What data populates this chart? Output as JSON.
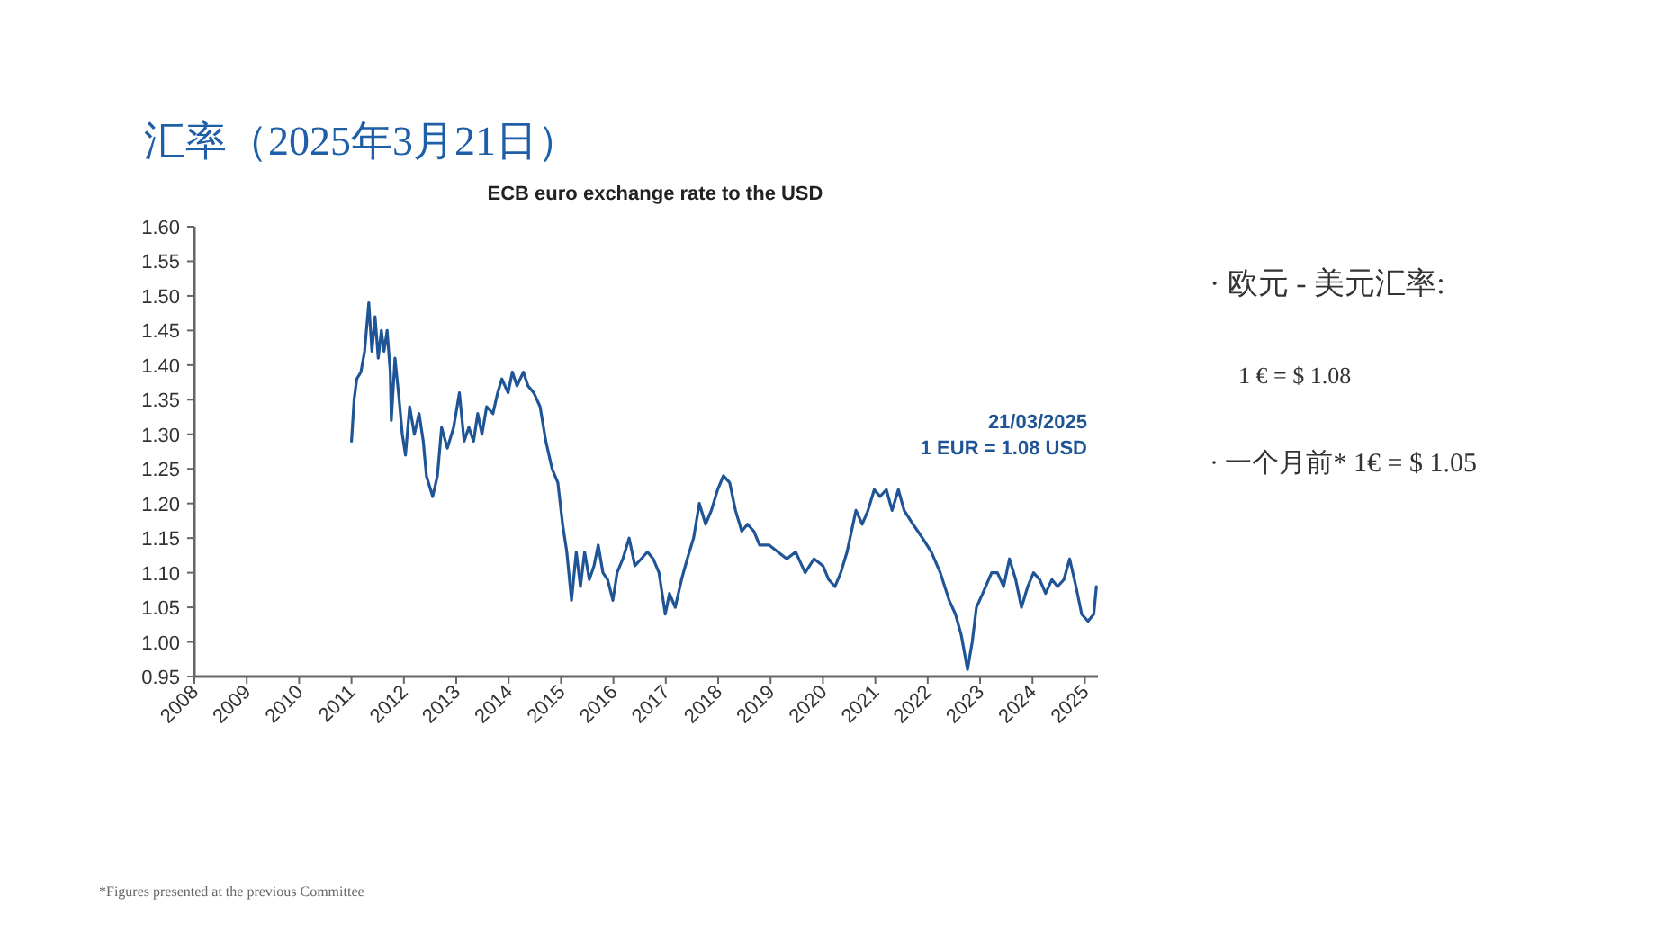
{
  "chart_data": {
    "type": "line",
    "title": "ECB euro exchange rate to the USD",
    "subtitle": "汇率（2025年3月21日）",
    "xlim": [
      2008,
      2025.25
    ],
    "xticks": [
      2008,
      2009,
      2010,
      2011,
      2012,
      2013,
      2014,
      2015,
      2016,
      2017,
      2018,
      2019,
      2020,
      2021,
      2022,
      2023,
      2024,
      2025
    ],
    "ylim": [
      0.95,
      1.6
    ],
    "yticks": [
      {
        "value": 0.95,
        "label": "0.95"
      },
      {
        "value": 1.0,
        "label": "1.00"
      },
      {
        "value": 1.05,
        "label": "1.05"
      },
      {
        "value": 1.1,
        "label": "1.10"
      },
      {
        "value": 1.15,
        "label": "1.15"
      },
      {
        "value": 1.2,
        "label": "1.20"
      },
      {
        "value": 1.25,
        "label": "1.25"
      },
      {
        "value": 1.3,
        "label": "1.30"
      },
      {
        "value": 1.35,
        "label": "1.35"
      },
      {
        "value": 1.4,
        "label": "1.40"
      },
      {
        "value": 1.45,
        "label": "1.45"
      },
      {
        "value": 1.5,
        "label": "1.50"
      },
      {
        "value": 1.55,
        "label": "1.55"
      },
      {
        "value": 1.6,
        "label": "1.60"
      }
    ],
    "grid": false,
    "marker": "none",
    "line_style": "solid",
    "series": [
      {
        "color": "#1f5596",
        "x": [
          2011.0,
          2011.05,
          2011.1,
          2011.18,
          2011.25,
          2011.33,
          2011.39,
          2011.45,
          2011.51,
          2011.57,
          2011.62,
          2011.68,
          2011.74,
          2011.76,
          2011.83,
          2011.91,
          2011.97,
          2012.03,
          2012.11,
          2012.2,
          2012.29,
          2012.37,
          2012.43,
          2012.55,
          2012.64,
          2012.72,
          2012.83,
          2012.95,
          2013.06,
          2013.15,
          2013.24,
          2013.33,
          2013.41,
          2013.49,
          2013.58,
          2013.7,
          2013.79,
          2013.87,
          2013.99,
          2014.07,
          2014.16,
          2014.28,
          2014.37,
          2014.48,
          2014.6,
          2014.71,
          2014.83,
          2014.94,
          2015.03,
          2015.11,
          2015.2,
          2015.29,
          2015.37,
          2015.45,
          2015.54,
          2015.63,
          2015.71,
          2015.8,
          2015.89,
          2015.99,
          2016.07,
          2016.18,
          2016.3,
          2016.41,
          2016.53,
          2016.65,
          2016.76,
          2016.87,
          2016.99,
          2017.07,
          2017.18,
          2017.3,
          2017.41,
          2017.53,
          2017.64,
          2017.76,
          2017.87,
          2017.99,
          2018.1,
          2018.22,
          2018.33,
          2018.45,
          2018.56,
          2018.68,
          2018.79,
          2018.97,
          2019.14,
          2019.31,
          2019.48,
          2019.66,
          2019.83,
          2020.0,
          2020.11,
          2020.23,
          2020.34,
          2020.46,
          2020.63,
          2020.75,
          2020.86,
          2020.98,
          2021.09,
          2021.21,
          2021.32,
          2021.44,
          2021.55,
          2021.72,
          2021.9,
          2022.07,
          2022.24,
          2022.41,
          2022.53,
          2022.64,
          2022.76,
          2022.85,
          2022.93,
          2023.05,
          2023.22,
          2023.33,
          2023.45,
          2023.56,
          2023.68,
          2023.79,
          2023.91,
          2024.02,
          2024.14,
          2024.25,
          2024.37,
          2024.48,
          2024.6,
          2024.71,
          2024.83,
          2024.94,
          2025.06,
          2025.17,
          2025.22
        ],
        "values": [
          1.29,
          1.35,
          1.38,
          1.39,
          1.42,
          1.49,
          1.42,
          1.47,
          1.41,
          1.45,
          1.42,
          1.45,
          1.39,
          1.32,
          1.41,
          1.35,
          1.3,
          1.27,
          1.34,
          1.3,
          1.33,
          1.29,
          1.24,
          1.21,
          1.24,
          1.31,
          1.28,
          1.31,
          1.36,
          1.29,
          1.31,
          1.29,
          1.33,
          1.3,
          1.34,
          1.33,
          1.36,
          1.38,
          1.36,
          1.39,
          1.37,
          1.39,
          1.37,
          1.36,
          1.34,
          1.29,
          1.25,
          1.23,
          1.17,
          1.13,
          1.06,
          1.13,
          1.08,
          1.13,
          1.09,
          1.11,
          1.14,
          1.1,
          1.09,
          1.06,
          1.1,
          1.12,
          1.15,
          1.11,
          1.12,
          1.13,
          1.12,
          1.1,
          1.04,
          1.07,
          1.05,
          1.09,
          1.12,
          1.15,
          1.2,
          1.17,
          1.19,
          1.22,
          1.24,
          1.23,
          1.19,
          1.16,
          1.17,
          1.16,
          1.14,
          1.14,
          1.13,
          1.12,
          1.13,
          1.1,
          1.12,
          1.11,
          1.09,
          1.08,
          1.1,
          1.13,
          1.19,
          1.17,
          1.19,
          1.22,
          1.21,
          1.22,
          1.19,
          1.22,
          1.19,
          1.17,
          1.15,
          1.13,
          1.1,
          1.06,
          1.04,
          1.01,
          0.96,
          1.0,
          1.05,
          1.07,
          1.1,
          1.1,
          1.08,
          1.12,
          1.09,
          1.05,
          1.08,
          1.1,
          1.09,
          1.07,
          1.09,
          1.08,
          1.09,
          1.12,
          1.08,
          1.04,
          1.03,
          1.04,
          1.08
        ]
      }
    ],
    "annotations": [
      "21/03/2025\n1 EUR = 1.08 USD",
      "· 欧元 - 美元汇率:",
      "1 € = $ 1.08",
      "· 一个月前* 1€ = $ 1.05",
      "*Figures presented at the previous Committee"
    ]
  }
}
